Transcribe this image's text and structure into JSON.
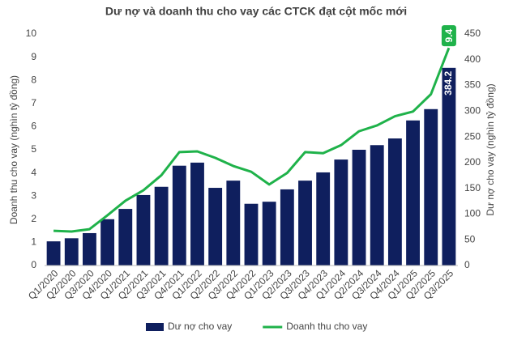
{
  "chart_data": {
    "type": "bar-line",
    "title": "Dư nợ và doanh thu cho vay các CTCK đạt cột mốc mới",
    "y_label": "Doanh thu cho vay (nghìn tỷ đồng)",
    "y2_label": "Dư nợ cho vay (nghìn tỷ đồng)",
    "categories": [
      "Q1/2020",
      "Q2/2020",
      "Q3/2020",
      "Q4/2020",
      "Q1/2021",
      "Q2/2021",
      "Q3/2021",
      "Q4/2021",
      "Q1/2022",
      "Q2/2022",
      "Q3/2022",
      "Q4/2022",
      "Q1/2023",
      "Q2/2023",
      "Q3/2023",
      "Q4/2023",
      "Q1/2024",
      "Q2/2024",
      "Q3/2024",
      "Q4/2024",
      "Q1/2025",
      "Q2/2025",
      "Q3/2025"
    ],
    "series": [
      {
        "name": "Dư nợ cho vay",
        "type": "bar",
        "axis": "y2",
        "color": "#0f1f5e",
        "values": [
          47,
          53,
          63,
          90,
          110,
          137,
          153,
          194,
          200,
          151,
          165,
          120,
          124,
          148,
          165,
          181,
          206,
          225,
          234,
          247,
          282,
          304,
          384.2
        ],
        "value_labels": [
          null,
          null,
          null,
          null,
          null,
          null,
          null,
          null,
          null,
          null,
          null,
          null,
          null,
          null,
          null,
          null,
          null,
          null,
          null,
          null,
          null,
          null,
          "384.2"
        ]
      },
      {
        "name": "Doanh thu cho vay",
        "type": "line",
        "axis": "y",
        "color": "#1fb24a",
        "values": [
          1.5,
          1.47,
          1.57,
          2.17,
          2.8,
          3.25,
          3.9,
          4.9,
          4.93,
          4.65,
          4.3,
          4.05,
          3.5,
          4.0,
          4.9,
          4.85,
          5.2,
          5.8,
          6.05,
          6.45,
          6.65,
          7.4,
          9.4
        ],
        "value_labels": [
          null,
          null,
          null,
          null,
          null,
          null,
          null,
          null,
          null,
          null,
          null,
          null,
          null,
          null,
          null,
          null,
          null,
          null,
          null,
          null,
          null,
          null,
          "9.4"
        ]
      }
    ],
    "ylim": [
      0,
      10
    ],
    "yticks": [
      0,
      1,
      2,
      3,
      4,
      5,
      6,
      7,
      8,
      9,
      10
    ],
    "y2lim": [
      0,
      450
    ],
    "y2ticks": [
      0,
      50,
      100,
      150,
      200,
      250,
      300,
      350,
      400,
      450
    ],
    "grid": false,
    "legend": "bottom"
  }
}
